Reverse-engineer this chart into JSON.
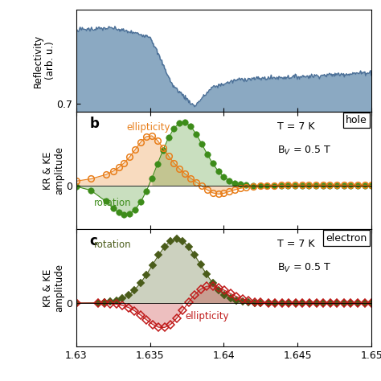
{
  "x_min": 1.63,
  "x_max": 1.65,
  "x_ticks": [
    1.63,
    1.635,
    1.64,
    1.645,
    1.65
  ],
  "x_tick_labels": [
    "1.63",
    "1.635",
    "1.64",
    "1.645",
    "1.65"
  ],
  "panel_a_ylabel": "Reflectivity\n(arb. u.)",
  "panel_b_ylabel": "KR & KE\namplitude",
  "panel_c_ylabel": "KR & KE\namplitude",
  "panel_b_label": "b",
  "panel_c_label": "c",
  "hole_text": "hole",
  "electron_text": "electron",
  "T_text": "T = 7 K",
  "B_text": "B$_V$ = 0.5 T",
  "reflectivity_color": "#4a6e96",
  "reflectivity_fill": "#7fa0bc",
  "green_filled_color": "#3d8c1a",
  "orange_open_color": "#e87e1a",
  "darkolive_filled_color": "#4a5c1a",
  "red_open_color": "#c01a1a",
  "green_fill_alpha": 0.28,
  "orange_fill_alpha": 0.28,
  "olive_fill_alpha": 0.28,
  "red_fill_alpha": 0.28
}
